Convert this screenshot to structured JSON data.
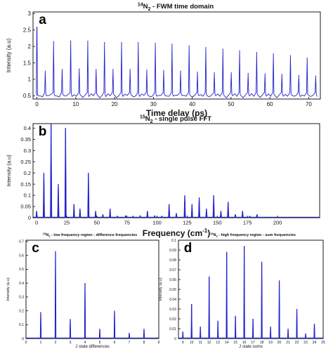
{
  "colors": {
    "trace": "#2323cc",
    "axis": "#000000",
    "panel_label_bg": "#ffffff",
    "panel_label_text": "#000000"
  },
  "chart_data": [
    {
      "panel_letter": "a",
      "type": "line",
      "title": "14N2 - FWM time domain",
      "title_parts": {
        "sup": "14",
        "main": "N",
        "sub": "2",
        "rest": " - FWM time domain"
      },
      "xlabel": "Time delay (ps)",
      "ylabel": "Intensity (a.u)",
      "xlim": [
        -1,
        73
      ],
      "ylim": [
        0.4,
        3.05
      ],
      "xticks": [
        0,
        10,
        20,
        30,
        40,
        50,
        60,
        70
      ],
      "yticks": [
        0.5,
        1,
        1.5,
        2,
        2.5,
        3
      ],
      "ytick_labels": [
        "0.5",
        "1",
        "1.5",
        "2",
        "2.5",
        "3"
      ],
      "baseline": 0.5,
      "major_peaks": {
        "x": [
          0,
          4.3,
          8.7,
          13.1,
          17.4,
          21.8,
          26.1,
          30.5,
          34.8,
          39.2,
          43.5,
          47.9,
          52.2,
          56.6,
          60.9,
          65.3,
          69.6
        ],
        "y": [
          3.0,
          2.15,
          2.17,
          2.16,
          2.12,
          2.12,
          2.12,
          2.1,
          2.07,
          2.02,
          1.97,
          1.92,
          1.87,
          1.82,
          1.78,
          1.72,
          1.65
        ]
      },
      "minor_peaks": {
        "x": [
          2.15,
          6.5,
          10.9,
          15.25,
          19.6,
          24.0,
          28.3,
          32.65,
          37.0,
          41.35,
          45.7,
          50.05,
          54.4,
          58.75,
          63.1,
          67.45,
          71.8
        ],
        "y": [
          1.25,
          1.3,
          1.32,
          1.3,
          1.3,
          1.3,
          1.28,
          1.27,
          1.25,
          1.22,
          1.2,
          1.2,
          1.18,
          1.17,
          1.15,
          1.12,
          1.1
        ]
      }
    },
    {
      "panel_letter": "b",
      "type": "bar",
      "title": "15N2 - single pulse FFT",
      "title_parts": {
        "sup": "15",
        "main": "N",
        "sub": "2",
        "rest": " - single pulse FFT"
      },
      "xlabel": "Frequency (cm-1)",
      "xlabel_parts": {
        "main": "Frequency (cm",
        "sup": "-1",
        "rest": ")"
      },
      "ylabel": "Intensity (a.u)",
      "xlim": [
        -3,
        235
      ],
      "ylim": [
        0,
        0.42
      ],
      "xticks": [
        0,
        25,
        50,
        75,
        100,
        125,
        150,
        175,
        200
      ],
      "yticks": [
        0,
        0.05,
        0.1,
        0.15,
        0.2,
        0.25,
        0.3,
        0.35,
        0.4
      ],
      "ytick_labels": [
        "0",
        "0.05",
        "0.1",
        "0.15",
        "0.2",
        "0.25",
        "0.3",
        "0.35",
        "0.4"
      ],
      "x": [
        0,
        6,
        12,
        18,
        24,
        31,
        36,
        43,
        49,
        55,
        61,
        67,
        74,
        80,
        86,
        92,
        98,
        104,
        110,
        116,
        123,
        129,
        135,
        141,
        147,
        153,
        159,
        165,
        171,
        177,
        183
      ],
      "values": [
        0.03,
        0.2,
        0.42,
        0.15,
        0.4,
        0.06,
        0.04,
        0.2,
        0.03,
        0.015,
        0.04,
        0.008,
        0.01,
        0.008,
        0.01,
        0.03,
        0.01,
        0.008,
        0.06,
        0.02,
        0.1,
        0.06,
        0.09,
        0.04,
        0.1,
        0.03,
        0.07,
        0.015,
        0.03,
        0.008,
        0.015
      ]
    },
    {
      "panel_letter": "c",
      "type": "bar",
      "title": "15N2 - low frequency region - difference frequencies",
      "title_parts": {
        "sup": "15",
        "main": "N",
        "sub": "2",
        "rest": " - low frequency region - difference frequencies"
      },
      "xlabel": "J state differences",
      "ylabel": "Intensity (a.u)",
      "xlim": [
        0,
        9
      ],
      "ylim": [
        0,
        0.71
      ],
      "xticks": [
        0,
        1,
        2,
        3,
        4,
        5,
        6,
        7,
        8,
        9
      ],
      "yticks": [
        0,
        0.1,
        0.2,
        0.3,
        0.4,
        0.5,
        0.6,
        0.7
      ],
      "ytick_labels": [
        "0",
        "0.1",
        "0.2",
        "0.3",
        "0.4",
        "0.5",
        "0.6",
        "0.7"
      ],
      "x": [
        1,
        2,
        3,
        4,
        5,
        6,
        7,
        8
      ],
      "values": [
        0.19,
        0.63,
        0.14,
        0.4,
        0.07,
        0.2,
        0.04,
        0.07
      ]
    },
    {
      "panel_letter": "d",
      "type": "bar",
      "title": "15N2 - high frequency region - sum frequencies",
      "title_parts": {
        "sup": "15",
        "main": "N",
        "sub": "2",
        "rest": " - high frequency region - sum frequencies"
      },
      "xlabel": "J state sums",
      "ylabel": "Intensity (a.u)",
      "xlim": [
        8.5,
        25
      ],
      "ylim": [
        0,
        0.1
      ],
      "xticks": [
        9,
        10,
        11,
        12,
        13,
        14,
        15,
        16,
        17,
        18,
        19,
        20,
        21,
        22,
        23,
        24,
        25
      ],
      "yticks": [
        0,
        0.01,
        0.02,
        0.03,
        0.04,
        0.05,
        0.06,
        0.07,
        0.08,
        0.09,
        0.1
      ],
      "ytick_labels": [
        "0",
        "0.01",
        "0.02",
        "0.03",
        "0.04",
        "0.05",
        "0.06",
        "0.07",
        "0.08",
        "0.09",
        "0.1"
      ],
      "x": [
        9,
        10,
        11,
        12,
        13,
        14,
        15,
        16,
        17,
        18,
        19,
        20,
        21,
        22,
        23,
        24
      ],
      "values": [
        0.007,
        0.035,
        0.012,
        0.063,
        0.018,
        0.088,
        0.023,
        0.094,
        0.02,
        0.078,
        0.012,
        0.059,
        0.01,
        0.03,
        0.005,
        0.015
      ]
    }
  ]
}
